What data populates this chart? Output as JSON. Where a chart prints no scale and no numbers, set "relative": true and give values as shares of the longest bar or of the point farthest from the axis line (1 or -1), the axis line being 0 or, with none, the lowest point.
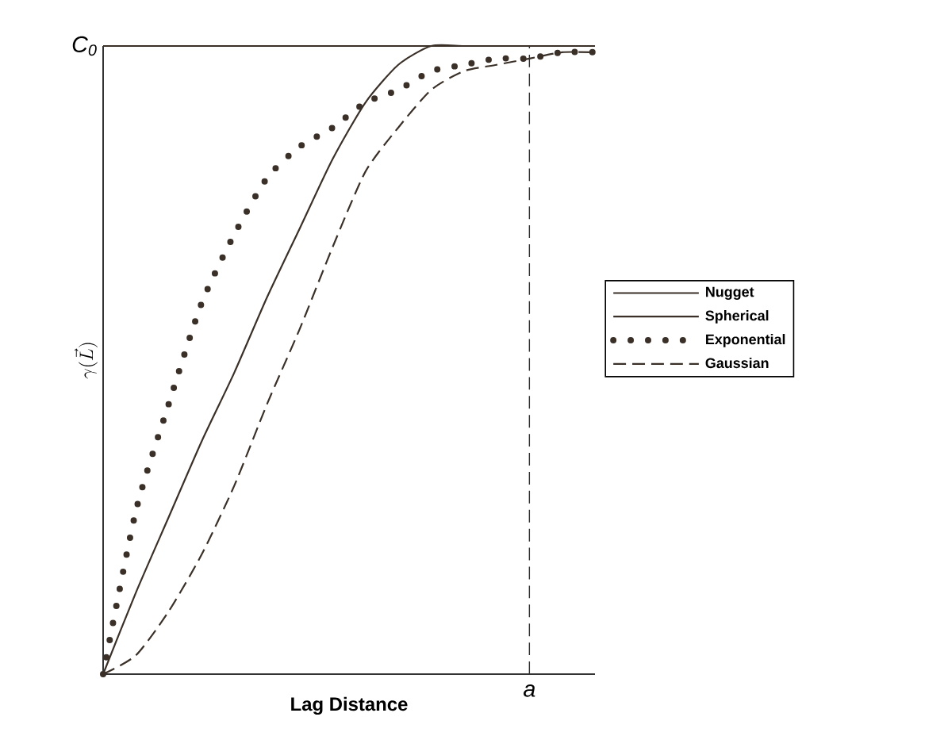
{
  "chart_data": {
    "type": "line",
    "relative": true,
    "xlabel": "**Lag Distance**",
    "ylabel": "\\gamma(\\vec{L})",
    "categories": [
      null,
      null,
      null,
      null,
      null,
      null,
      null,
      null,
      null,
      null,
      null,
      null,
      null,
      null,
      null,
      null
    ],
    "series": [
      {
        "name": "Nugget",
        "color": "#3a3028",
        "line_style": "solid",
        "values": [
          1,
          1,
          1,
          1,
          1,
          1,
          1,
          1,
          1,
          1,
          1,
          1,
          1,
          1,
          1,
          1
        ]
      },
      {
        "name": "Spherical",
        "color": "#3a3028",
        "line_style": "solid",
        "values": [
          0,
          0.13,
          0.25,
          0.37,
          0.48,
          0.6,
          0.71,
          0.82,
          0.91,
          0.97,
          1,
          1,
          1,
          1,
          1,
          1
        ]
      },
      {
        "name": "Exponential",
        "color": "#3a3028",
        "line_style": "dotted",
        "values": [
          0,
          0.26,
          0.43,
          0.59,
          0.7,
          0.79,
          0.84,
          0.87,
          0.91,
          0.93,
          0.96,
          0.97,
          0.98,
          0.98,
          0.99,
          0.99
        ]
      },
      {
        "name": "Gaussian",
        "color": "#3a3028",
        "line_style": "dashed",
        "values": [
          0,
          0.03,
          0.1,
          0.19,
          0.3,
          0.43,
          0.55,
          0.68,
          0.8,
          0.87,
          0.93,
          0.96,
          0.97,
          0.98,
          0.99,
          0.99
        ]
      }
    ],
    "annotations": [
      "C$_{0}$",
      "a"
    ],
    "legend": "right"
  }
}
